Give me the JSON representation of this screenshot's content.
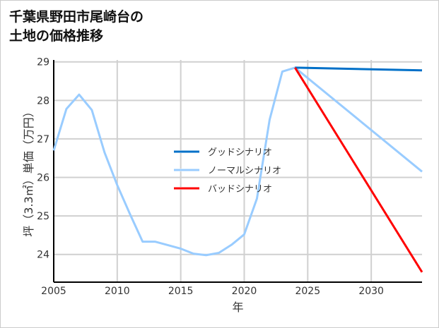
{
  "title_line1": "千葉県野田市尾崎台の",
  "title_line2": "土地の価格推移",
  "chart_data": {
    "type": "line",
    "title": "千葉県野田市尾崎台の土地の価格推移",
    "xlabel": "年",
    "ylabel": "坪（3.3㎡）単価（万円）",
    "xlim": [
      2005,
      2034
    ],
    "ylim": [
      23.28,
      29.05
    ],
    "xticks": [
      2005,
      2010,
      2015,
      2020,
      2025,
      2030
    ],
    "yticks": [
      24,
      25,
      26,
      27,
      28,
      29
    ],
    "grid": true,
    "legend_position": "center",
    "series": [
      {
        "name": "グッドシナリオ",
        "color": "#0070C8",
        "x": [
          2024,
          2034
        ],
        "y": [
          28.85,
          28.78
        ]
      },
      {
        "name": "ノーマルシナリオ",
        "color": "#99CCFF",
        "x": [
          2005,
          2006,
          2007,
          2008,
          2009,
          2010,
          2011,
          2012,
          2013,
          2014,
          2015,
          2016,
          2017,
          2018,
          2019,
          2020,
          2021,
          2022,
          2023,
          2024,
          2034
        ],
        "y": [
          26.7,
          27.78,
          28.15,
          27.75,
          26.65,
          25.8,
          25.05,
          24.33,
          24.33,
          24.24,
          24.15,
          24.02,
          23.98,
          24.04,
          24.25,
          24.52,
          25.45,
          27.5,
          28.75,
          28.85,
          26.15
        ]
      },
      {
        "name": "バッドシナリオ",
        "color": "#FF0000",
        "x": [
          2024,
          2034
        ],
        "y": [
          28.85,
          23.54
        ]
      }
    ]
  }
}
